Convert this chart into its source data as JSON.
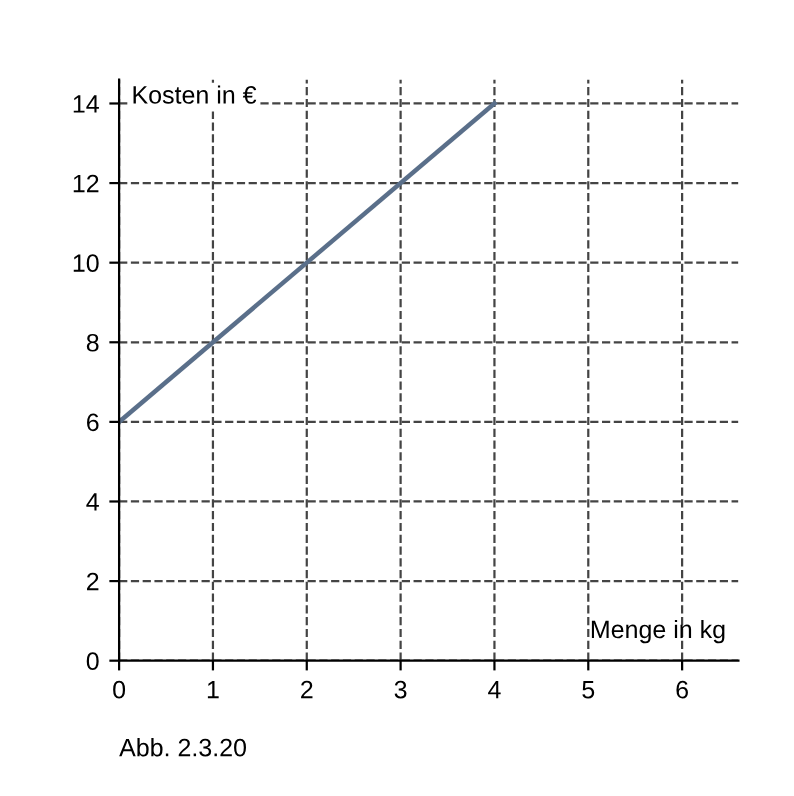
{
  "chart_data": {
    "type": "line",
    "xlabel": "Menge in kg",
    "ylabel": "Kosten in €",
    "x": [
      0,
      4
    ],
    "series": [
      {
        "color": "#5a6f8a",
        "values": [
          6,
          14
        ]
      }
    ],
    "xlim": [
      0,
      6.6
    ],
    "ylim": [
      0,
      14.6
    ],
    "xticks": [
      0,
      1,
      2,
      3,
      4,
      5,
      6
    ],
    "yticks": [
      0,
      2,
      4,
      6,
      8,
      10,
      12,
      14
    ],
    "grid": true,
    "line_style": "solid",
    "marker": "none",
    "annotations": [
      "Abb. 2.3.20"
    ]
  }
}
